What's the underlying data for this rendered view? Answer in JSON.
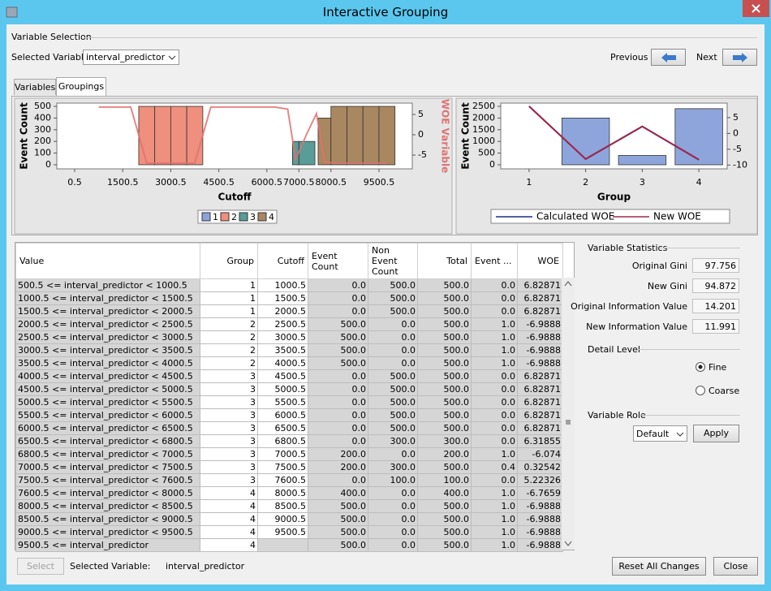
{
  "window": {
    "title": "Interactive Grouping"
  },
  "variable_selection": {
    "heading": "Variable Selection",
    "label": "Selected Variable",
    "value": "interval_predictor",
    "previous": "Previous",
    "next": "Next"
  },
  "tabs": [
    "Variables",
    "Groupings"
  ],
  "chart_data": [
    {
      "type": "histogram",
      "xlabel": "Cutoff",
      "ylabel": "Event Count",
      "y2label": "WOE Variable",
      "bins": [
        500.5,
        1000.5,
        1500.5,
        2000.5,
        2500.5,
        3000.5,
        3500.5,
        4000.5,
        4500.5,
        5000.5,
        5500.5,
        6000.5,
        6500.5,
        6800.5,
        7000.5,
        7500.5,
        7600.5,
        8000.5,
        8500.5,
        9000.5,
        9500.5,
        10000.5
      ],
      "values": [
        0,
        0,
        0,
        500,
        500,
        500,
        500,
        0,
        0,
        0,
        0,
        0,
        0,
        200,
        200,
        0,
        400,
        500,
        500,
        500,
        500
      ],
      "groups": [
        0,
        0,
        0,
        1,
        1,
        1,
        1,
        2,
        2,
        2,
        2,
        2,
        2,
        2,
        2,
        2,
        3,
        3,
        3,
        3,
        3
      ],
      "legend": [
        "1",
        "2",
        "3",
        "4"
      ],
      "group_colors": [
        "#8ea3db",
        "#ef8f7d",
        "#5a9c97",
        "#a98760"
      ],
      "line": {
        "color": "#e07272",
        "axis": "y2",
        "values": [
          6.82871,
          6.82871,
          6.82871,
          -6.9888,
          -6.9888,
          -6.9888,
          -6.9888,
          6.82871,
          6.82871,
          6.82871,
          6.82871,
          6.82871,
          6.31855,
          -6.074,
          0.32542,
          5.22326,
          -6.7659,
          -6.9888,
          -6.9888,
          -6.9888,
          -6.9888
        ]
      },
      "xlim": [
        -557,
        10540
      ],
      "xticks": [
        0.5,
        1500.5,
        3000.5,
        4500.5,
        6000.5,
        7000.5,
        8000.5,
        9500.5
      ],
      "ylim": [
        -35,
        528
      ],
      "yticks": [
        0,
        100,
        200,
        300,
        400,
        500
      ],
      "y2lim": [
        -8.4,
        7.8
      ],
      "y2ticks": [
        -5,
        0,
        5
      ]
    },
    {
      "type": "bar",
      "xlabel": "Group",
      "ylabel": "Event Count",
      "categories": [
        "1",
        "2",
        "3",
        "4"
      ],
      "values": [
        0,
        2000,
        400,
        2400
      ],
      "color": "#8ea5dc",
      "series": [
        {
          "name": "Calculated WOE",
          "color": "#1c2a8c",
          "axis": "y2",
          "values": [
            8.6,
            -8.1,
            2.2,
            -8.3
          ]
        },
        {
          "name": "New WOE",
          "color": "#a0284a",
          "axis": "y2",
          "values": [
            8.6,
            -8.1,
            2.2,
            -8.3
          ]
        }
      ],
      "ylim": [
        -174,
        2639
      ],
      "yticks": [
        0,
        500,
        1000,
        1500,
        2000,
        2500
      ],
      "y2lim": [
        -11.2,
        9.6
      ],
      "y2ticks": [
        -10,
        -5,
        0,
        5
      ]
    }
  ],
  "table": {
    "columns": [
      "Value",
      "Group",
      "Cutoff",
      "Event Count",
      "Non Event Count",
      "Total",
      "Event ...",
      "WOE"
    ],
    "rows": [
      [
        "500.5 <= interval_predictor < 1000.5",
        "1",
        "1000.5",
        "0.0",
        "500.0",
        "500.0",
        "0.0",
        "6.82871"
      ],
      [
        "1000.5 <= interval_predictor < 1500.5",
        "1",
        "1500.5",
        "0.0",
        "500.0",
        "500.0",
        "0.0",
        "6.82871"
      ],
      [
        "1500.5 <= interval_predictor < 2000.5",
        "1",
        "2000.5",
        "0.0",
        "500.0",
        "500.0",
        "0.0",
        "6.82871"
      ],
      [
        "2000.5 <= interval_predictor < 2500.5",
        "2",
        "2500.5",
        "500.0",
        "0.0",
        "500.0",
        "1.0",
        "-6.9888"
      ],
      [
        "2500.5 <= interval_predictor < 3000.5",
        "2",
        "3000.5",
        "500.0",
        "0.0",
        "500.0",
        "1.0",
        "-6.9888"
      ],
      [
        "3000.5 <= interval_predictor < 3500.5",
        "2",
        "3500.5",
        "500.0",
        "0.0",
        "500.0",
        "1.0",
        "-6.9888"
      ],
      [
        "3500.5 <= interval_predictor < 4000.5",
        "2",
        "4000.5",
        "500.0",
        "0.0",
        "500.0",
        "1.0",
        "-6.9888"
      ],
      [
        "4000.5 <= interval_predictor < 4500.5",
        "3",
        "4500.5",
        "0.0",
        "500.0",
        "500.0",
        "0.0",
        "6.82871"
      ],
      [
        "4500.5 <= interval_predictor < 5000.5",
        "3",
        "5000.5",
        "0.0",
        "500.0",
        "500.0",
        "0.0",
        "6.82871"
      ],
      [
        "5000.5 <= interval_predictor < 5500.5",
        "3",
        "5500.5",
        "0.0",
        "500.0",
        "500.0",
        "0.0",
        "6.82871"
      ],
      [
        "5500.5 <= interval_predictor < 6000.5",
        "3",
        "6000.5",
        "0.0",
        "500.0",
        "500.0",
        "0.0",
        "6.82871"
      ],
      [
        "6000.5 <= interval_predictor < 6500.5",
        "3",
        "6500.5",
        "0.0",
        "500.0",
        "500.0",
        "0.0",
        "6.82871"
      ],
      [
        "6500.5 <= interval_predictor < 6800.5",
        "3",
        "6800.5",
        "0.0",
        "300.0",
        "300.0",
        "0.0",
        "6.31855"
      ],
      [
        "6800.5 <= interval_predictor < 7000.5",
        "3",
        "7000.5",
        "200.0",
        "0.0",
        "200.0",
        "1.0",
        "-6.074"
      ],
      [
        "7000.5 <= interval_predictor < 7500.5",
        "3",
        "7500.5",
        "200.0",
        "300.0",
        "500.0",
        "0.4",
        "0.32542"
      ],
      [
        "7500.5 <= interval_predictor < 7600.5",
        "3",
        "7600.5",
        "0.0",
        "100.0",
        "100.0",
        "0.0",
        "5.22326"
      ],
      [
        "7600.5 <= interval_predictor < 8000.5",
        "4",
        "8000.5",
        "400.0",
        "0.0",
        "400.0",
        "1.0",
        "-6.7659"
      ],
      [
        "8000.5 <= interval_predictor < 8500.5",
        "4",
        "8500.5",
        "500.0",
        "0.0",
        "500.0",
        "1.0",
        "-6.9888"
      ],
      [
        "8500.5 <= interval_predictor < 9000.5",
        "4",
        "9000.5",
        "500.0",
        "0.0",
        "500.0",
        "1.0",
        "-6.9888"
      ],
      [
        "9000.5 <= interval_predictor < 9500.5",
        "4",
        "9500.5",
        "500.0",
        "0.0",
        "500.0",
        "1.0",
        "-6.9888"
      ],
      [
        "9500.5 <= interval_predictor",
        "4",
        null,
        "500.0",
        "0.0",
        "500.0",
        "1.0",
        "-6.9888"
      ]
    ]
  },
  "statistics": {
    "heading": "Variable Statistics",
    "items": [
      {
        "label": "Original Gini",
        "value": "97.756"
      },
      {
        "label": "New Gini",
        "value": "94.872"
      },
      {
        "label": "Original Information Value",
        "value": "14.201"
      },
      {
        "label": "New Information Value",
        "value": "11.991"
      }
    ]
  },
  "detail_level": {
    "heading": "Detail Level",
    "options": [
      "Fine",
      "Coarse"
    ],
    "selected_index": 0
  },
  "variable_role": {
    "heading": "Variable Role",
    "value": "Default",
    "button": "Apply"
  },
  "footer": {
    "select": "Select",
    "label": "Selected Variable:",
    "value": "interval_predictor",
    "reset": "Reset All Changes",
    "close": "Close"
  }
}
